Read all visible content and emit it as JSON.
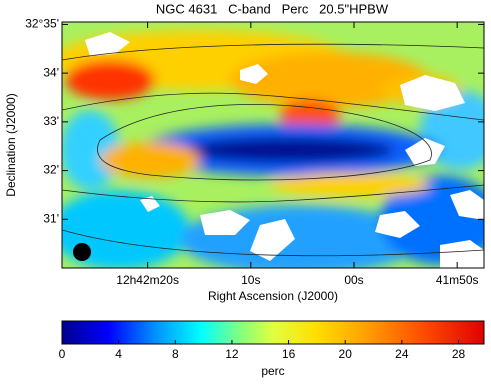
{
  "chart_data": {
    "type": "image",
    "title": "NGC 4631   C-band   Perc   20.5\"HPBW",
    "x_label": "Right Ascension (J2000)",
    "y_label": "Declination (J2000)",
    "xlim": [
      28.3,
      -12.6
    ],
    "xticks": [
      {
        "value": 20,
        "label": "12h42m20s"
      },
      {
        "value": 10,
        "label": "10s"
      },
      {
        "value": 0,
        "label": "00s"
      },
      {
        "value": -10,
        "label": "41m50s"
      }
    ],
    "ylim": [
      30,
      35.05
    ],
    "yticks": [
      {
        "value": 35,
        "label": "32°35'"
      },
      {
        "value": 34,
        "label": "34'"
      },
      {
        "value": 33,
        "label": "33'"
      },
      {
        "value": 32,
        "label": "32'"
      },
      {
        "value": 31,
        "label": "31'"
      }
    ],
    "colorbar": {
      "label": "perc",
      "lim": [
        0,
        29.8
      ],
      "ticks": [
        0,
        4,
        8,
        12,
        16,
        20,
        24,
        28
      ]
    }
  }
}
